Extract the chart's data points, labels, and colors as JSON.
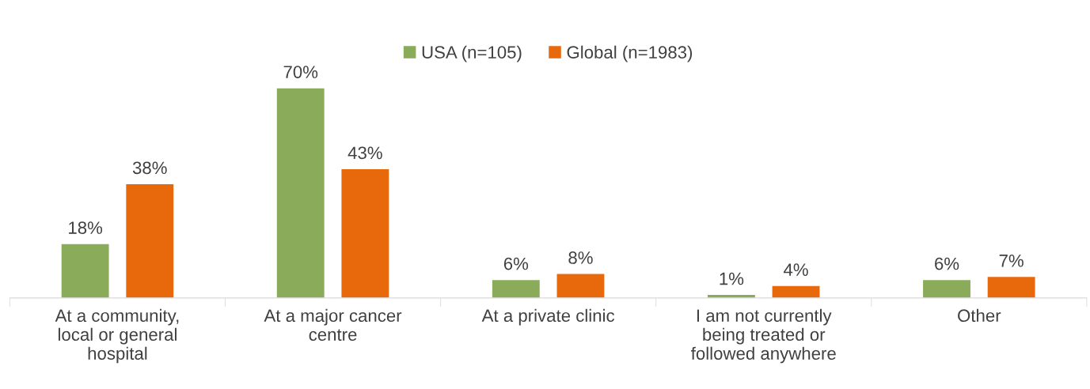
{
  "chart_data": {
    "type": "bar",
    "categories": [
      "At a community,\nlocal or general\nhospital",
      "At a major cancer\ncentre",
      "At a private clinic",
      "I am not currently\nbeing treated or\nfollowed anywhere",
      "Other"
    ],
    "series": [
      {
        "name": "USA (n=105)",
        "color": "#8aac5a",
        "values": [
          18,
          70,
          6,
          1,
          6
        ],
        "value_labels": [
          "18%",
          "70%",
          "6%",
          "1%",
          "6%"
        ]
      },
      {
        "name": "Global (n=1983)",
        "color": "#e8690b",
        "values": [
          38,
          43,
          8,
          4,
          7
        ],
        "value_labels": [
          "38%",
          "43%",
          "8%",
          "4%",
          "7%"
        ]
      }
    ],
    "legend": "top",
    "grid": false,
    "tick_labels": "x"
  }
}
